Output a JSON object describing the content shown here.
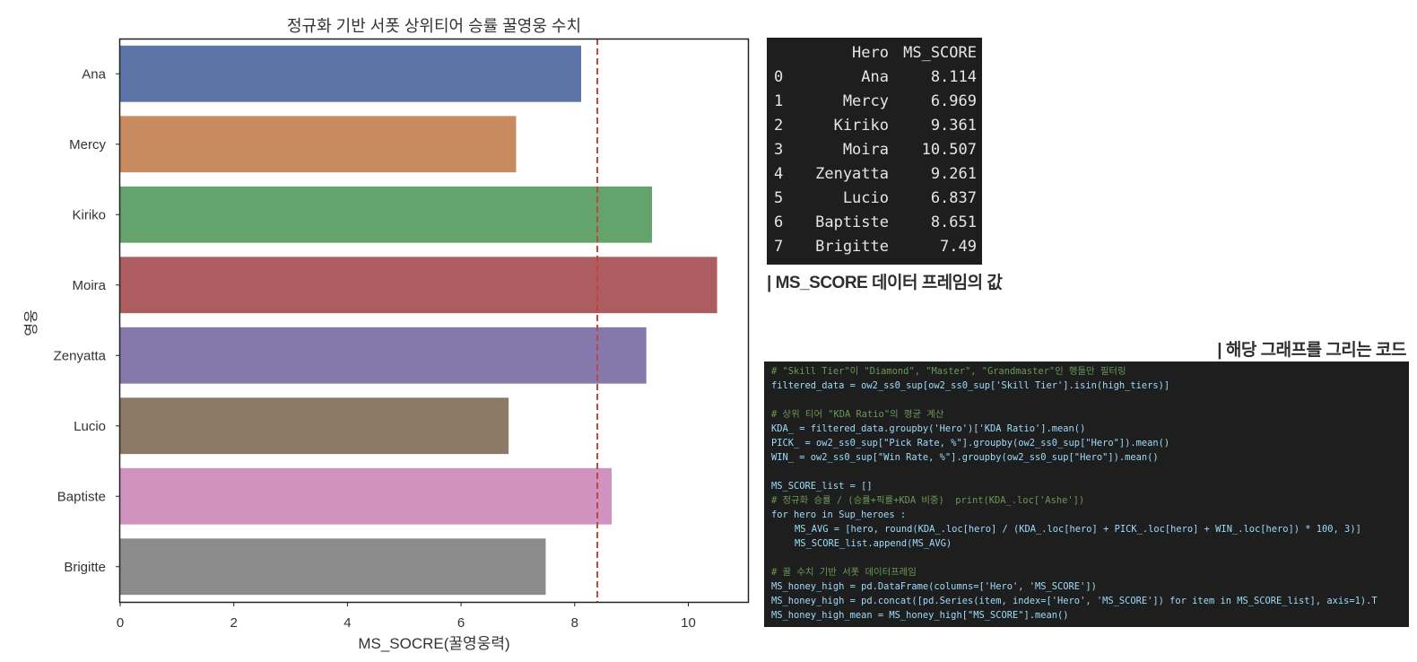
{
  "chart_data": {
    "type": "bar",
    "orientation": "horizontal",
    "title": "정규화 기반 서폿 상위티어 승률 꿀영웅 수치",
    "xlabel": "MS_SOCRE(꿀영웅력)",
    "ylabel": "영웅",
    "categories": [
      "Ana",
      "Mercy",
      "Kiriko",
      "Moira",
      "Zenyatta",
      "Lucio",
      "Baptiste",
      "Brigitte"
    ],
    "values": [
      8.114,
      6.969,
      9.361,
      10.507,
      9.261,
      6.837,
      8.651,
      7.49
    ],
    "colors": [
      "#5c74a7",
      "#c88a5f",
      "#64a36c",
      "#ad5c5f",
      "#8579ac",
      "#8c7a66",
      "#d093c0",
      "#8c8c8c"
    ],
    "xlim": [
      0,
      11.05
    ],
    "xticks": [
      "0",
      "2",
      "4",
      "6",
      "8",
      "10"
    ],
    "mean_line": 8.399,
    "mean_line_style": "dashed",
    "mean_line_color": "#c0453f",
    "grid": false
  },
  "dataframe": {
    "columns": [
      "Hero",
      "MS_SCORE"
    ],
    "rows": [
      {
        "index": "0",
        "hero": "Ana",
        "score": "8.114"
      },
      {
        "index": "1",
        "hero": "Mercy",
        "score": "6.969"
      },
      {
        "index": "2",
        "hero": "Kiriko",
        "score": "9.361"
      },
      {
        "index": "3",
        "hero": "Moira",
        "score": "10.507"
      },
      {
        "index": "4",
        "hero": "Zenyatta",
        "score": "9.261"
      },
      {
        "index": "5",
        "hero": "Lucio",
        "score": "6.837"
      },
      {
        "index": "6",
        "hero": "Baptiste",
        "score": "8.651"
      },
      {
        "index": "7",
        "hero": "Brigitte",
        "score": "7.49"
      }
    ]
  },
  "captions": {
    "dataframe": "| MS_SCORE 데이터 프레임의 값",
    "code": "| 해당 그래프를 그리는 코드"
  },
  "code": {
    "lines": [
      {
        "text": "# \"Skill Tier\"이 \"Diamond\", \"Master\", \"Grandmaster\"인 행들만 필터링",
        "type": "comment"
      },
      {
        "text": "filtered_data = ow2_ss0_sup[ow2_ss0_sup['Skill Tier'].isin(high_tiers)]",
        "type": "code"
      },
      {
        "text": "",
        "type": "blank"
      },
      {
        "text": "# 상위 티어 \"KDA Ratio\"의 평균 계산",
        "type": "comment"
      },
      {
        "text": "KDA_ = filtered_data.groupby('Hero')['KDA Ratio'].mean()",
        "type": "code"
      },
      {
        "text": "PICK_ = ow2_ss0_sup[\"Pick Rate, %\"].groupby(ow2_ss0_sup[\"Hero\"]).mean()",
        "type": "code"
      },
      {
        "text": "WIN_ = ow2_ss0_sup[\"Win Rate, %\"].groupby(ow2_ss0_sup[\"Hero\"]).mean()",
        "type": "code"
      },
      {
        "text": "",
        "type": "blank"
      },
      {
        "text": "MS_SCORE_list = []",
        "type": "code"
      },
      {
        "text": "# 정규화 승률 / (승률+픽률+KDA 비중)  print(KDA_.loc['Ashe'])",
        "type": "comment"
      },
      {
        "text": "for hero in Sup_heroes :",
        "type": "code"
      },
      {
        "text": "MS_AVG = [hero, round(KDA_.loc[hero] / (KDA_.loc[hero] + PICK_.loc[hero] + WIN_.loc[hero]) * 100, 3)]",
        "type": "indent"
      },
      {
        "text": "MS_SCORE_list.append(MS_AVG)",
        "type": "indent"
      },
      {
        "text": "",
        "type": "blank"
      },
      {
        "text": "# 꿀 수치 기반 서폿 데이터프레임",
        "type": "comment"
      },
      {
        "text": "MS_honey_high = pd.DataFrame(columns=['Hero', 'MS_SCORE'])",
        "type": "code"
      },
      {
        "text": "MS_honey_high = pd.concat([pd.Series(item, index=['Hero', 'MS_SCORE']) for item in MS_SCORE_list], axis=1).T",
        "type": "code"
      },
      {
        "text": "MS_honey_high_mean = MS_honey_high[\"MS_SCORE\"].mean()",
        "type": "code"
      }
    ]
  }
}
